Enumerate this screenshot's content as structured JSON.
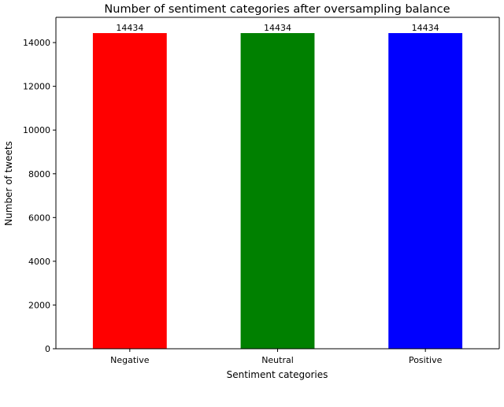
{
  "chart_data": {
    "type": "bar",
    "title": "Number of sentiment categories after oversampling balance",
    "xlabel": "Sentiment categories",
    "ylabel": "Number of tweets",
    "categories": [
      "Negative",
      "Neutral",
      "Positive"
    ],
    "values": [
      14434,
      14434,
      14434
    ],
    "data_labels": [
      "14434",
      "14434",
      "14434"
    ],
    "colors": [
      "#ff0000",
      "#008000",
      "#0000ff"
    ],
    "ylim": [
      0,
      15155
    ],
    "yticks": [
      0,
      2000,
      4000,
      6000,
      8000,
      10000,
      12000,
      14000
    ],
    "ytick_labels": [
      "0",
      "2000",
      "4000",
      "6000",
      "8000",
      "10000",
      "12000",
      "14000"
    ],
    "grid": false,
    "legend": "none"
  }
}
